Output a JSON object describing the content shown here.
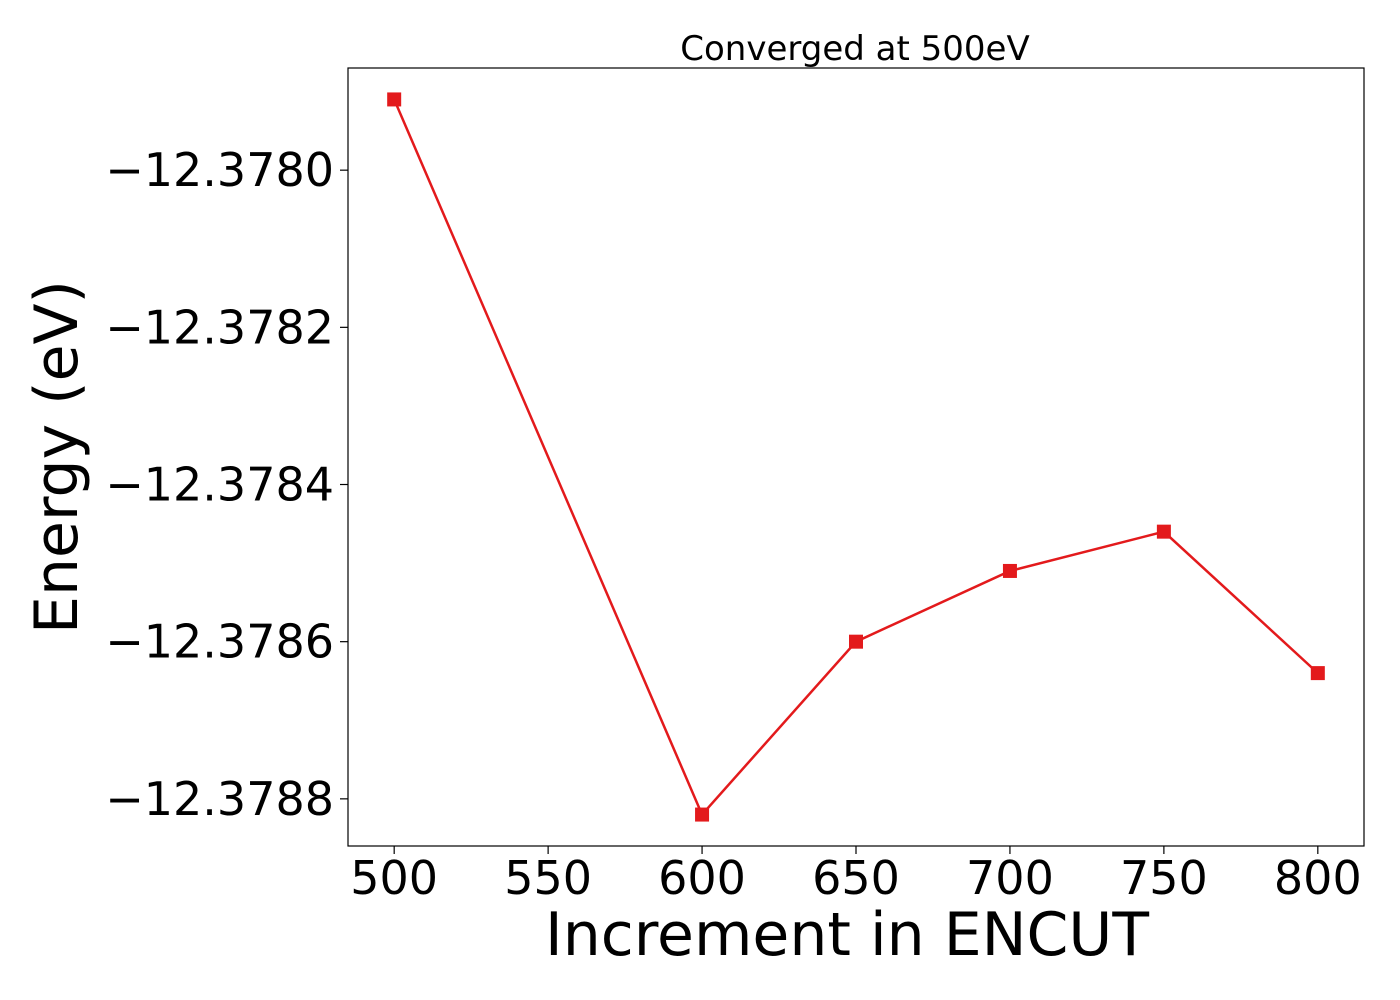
{
  "chart_data": {
    "type": "line",
    "title": "Converged at 500eV",
    "xlabel": "Increment in ENCUT",
    "ylabel": "Energy (eV)",
    "x": [
      500,
      600,
      650,
      700,
      750,
      800
    ],
    "series": [
      {
        "values": [
          -12.37791,
          -12.37882,
          -12.3786,
          -12.37851,
          -12.37846,
          -12.37864
        ],
        "color": "#e31a1c",
        "marker": "square"
      }
    ],
    "xlim": [
      485,
      815
    ],
    "ylim": [
      -12.37886,
      -12.37787
    ],
    "xticks": [
      500,
      550,
      600,
      650,
      700,
      750,
      800
    ],
    "xtick_labels": [
      "500",
      "550",
      "600",
      "650",
      "700",
      "750",
      "800"
    ],
    "yticks": [
      -12.3788,
      -12.3786,
      -12.3784,
      -12.3782,
      -12.378
    ],
    "ytick_labels": [
      "−12.3788",
      "−12.3786",
      "−12.3784",
      "−12.3782",
      "−12.3780"
    ],
    "grid": false,
    "legend": "none"
  }
}
